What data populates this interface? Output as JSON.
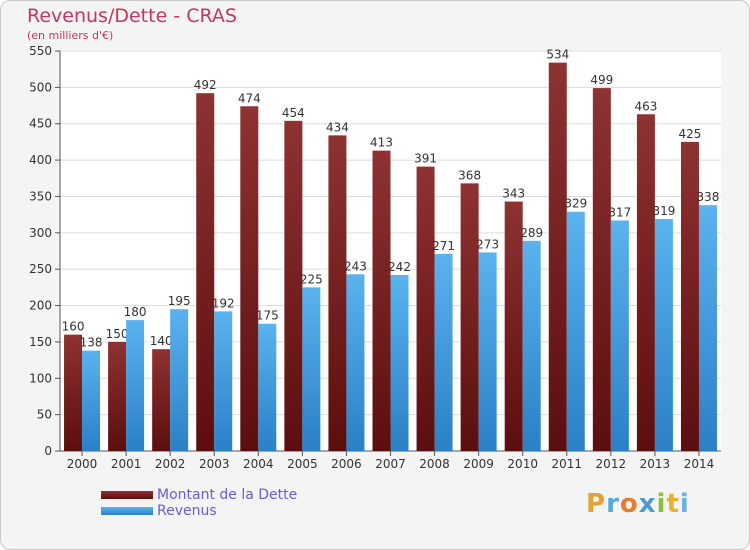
{
  "title": "Revenus/Dette - CRAS",
  "subtitle": "(en milliers d'€)",
  "logo": {
    "letters": [
      "P",
      "r",
      "o",
      "x",
      "i",
      "t",
      "i"
    ],
    "colors": [
      "#e2a230",
      "#5aa8d8",
      "#e87a2a",
      "#4c9ad2",
      "#8abf3a",
      "#e8b030",
      "#6ab0e0"
    ]
  },
  "chart_data": {
    "type": "bar",
    "categories": [
      "2000",
      "2001",
      "2002",
      "2003",
      "2004",
      "2005",
      "2006",
      "2007",
      "2008",
      "2009",
      "2010",
      "2011",
      "2012",
      "2013",
      "2014"
    ],
    "series": [
      {
        "name": "Montant de la Dette",
        "color": "#7a1c1c",
        "values": [
          160,
          150,
          140,
          492,
          474,
          454,
          434,
          413,
          391,
          368,
          343,
          534,
          499,
          463,
          425
        ]
      },
      {
        "name": "Revenus",
        "color": "#3d9ee0",
        "values": [
          138,
          180,
          195,
          192,
          175,
          225,
          243,
          242,
          271,
          273,
          289,
          329,
          317,
          319,
          338
        ]
      }
    ],
    "ylim": [
      0,
      550
    ],
    "yticks": [
      "0",
      "50",
      "100",
      "150",
      "200",
      "250",
      "300",
      "350",
      "400",
      "450",
      "500",
      "550"
    ],
    "grid": true,
    "legend": "bottom-left"
  }
}
